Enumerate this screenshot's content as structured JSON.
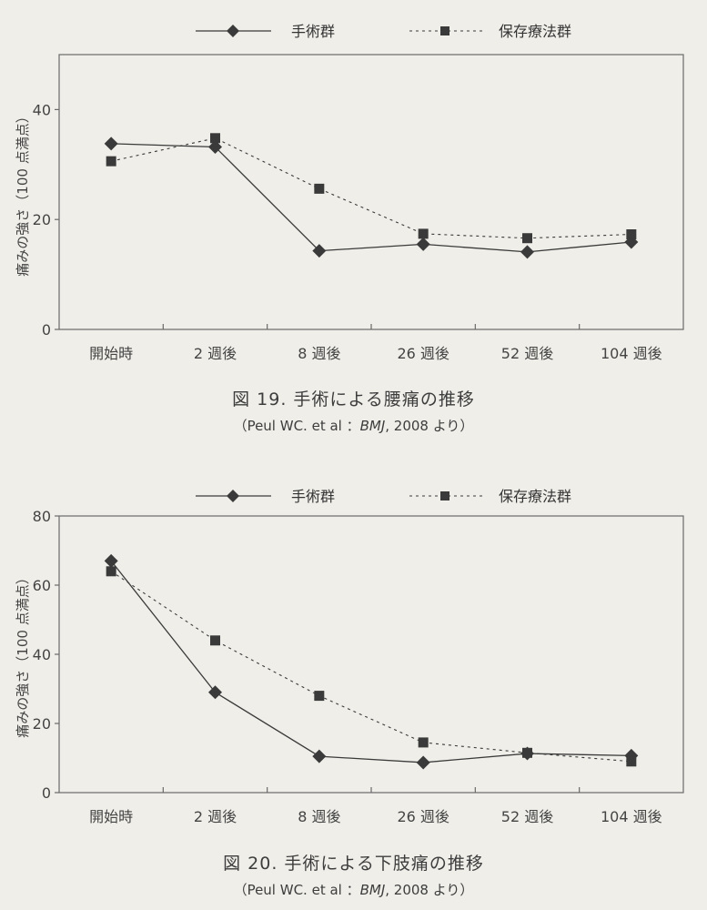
{
  "colors": {
    "surgery": "#3a3a3a",
    "conservative": "#3a3a3a",
    "axis": "#6a6a6a",
    "background": "#efeee9"
  },
  "legend": {
    "surgery_label": "手術群",
    "conservative_label": "保存療法群"
  },
  "chart_data": [
    {
      "type": "line",
      "ylabel": "痛みの強さ（100 点満点）",
      "ylim": [
        0,
        50
      ],
      "yticks": [
        0,
        20,
        40
      ],
      "categories": [
        "開始時",
        "2 週後",
        "8 週後",
        "26 週後",
        "52 週後",
        "104 週後"
      ],
      "series": [
        {
          "name": "手術群",
          "marker": "diamond",
          "line": "solid",
          "values": [
            33.8,
            33.2,
            14.3,
            15.5,
            14.1,
            15.9
          ]
        },
        {
          "name": "保存療法群",
          "marker": "square",
          "line": "dashed",
          "values": [
            30.6,
            34.8,
            25.6,
            17.4,
            16.6,
            17.3
          ]
        }
      ],
      "legend_position": "top",
      "grid": false
    },
    {
      "type": "line",
      "ylabel": "痛みの強さ（100 点満点）",
      "ylim": [
        0,
        80
      ],
      "yticks": [
        0,
        20,
        40,
        60,
        80
      ],
      "categories": [
        "開始時",
        "2 週後",
        "8 週後",
        "26 週後",
        "52 週後",
        "104 週後"
      ],
      "series": [
        {
          "name": "手術群",
          "marker": "diamond",
          "line": "solid",
          "values": [
            67,
            29,
            10.5,
            8.7,
            11.3,
            10.7
          ]
        },
        {
          "name": "保存療法群",
          "marker": "square",
          "line": "dashed",
          "values": [
            64,
            44,
            28,
            14.5,
            11.5,
            9
          ]
        }
      ],
      "legend_position": "top",
      "grid": false
    }
  ],
  "captions": [
    {
      "title": "図 19.  手術による腰痛の推移",
      "source_prefix": "（Peul WC.   et al  ：",
      "source_journal": "BMJ",
      "source_suffix": ", 2008 より）"
    },
    {
      "title": "図 20.  手術による下肢痛の推移",
      "source_prefix": "（Peul WC.   et al  ：",
      "source_journal": "BMJ",
      "source_suffix": ", 2008 より）"
    }
  ]
}
